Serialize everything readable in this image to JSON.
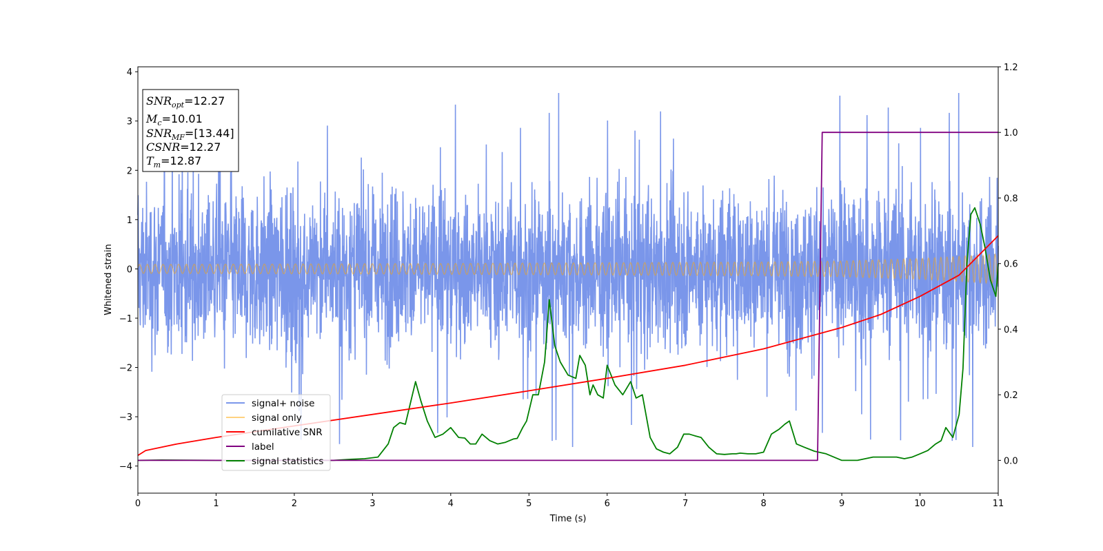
{
  "chart_data": {
    "type": "line",
    "xlabel": "Time (s)",
    "ylabel": "Whitened strain",
    "xlim": [
      0,
      11
    ],
    "ylim_left": [
      -4.55,
      4.1
    ],
    "ylim_right": [
      -0.1,
      1.2
    ],
    "x_ticks": [
      "0",
      "1",
      "2",
      "3",
      "4",
      "5",
      "6",
      "7",
      "8",
      "9",
      "10",
      "11"
    ],
    "y_ticks_left": [
      "−4",
      "−3",
      "−2",
      "−1",
      "0",
      "1",
      "2",
      "3",
      "4"
    ],
    "y_ticks_right": [
      "0.0",
      "0.2",
      "0.4",
      "0.6",
      "0.8",
      "1.0",
      "1.2"
    ],
    "legend_position": "lower-left",
    "grid": false,
    "annotation": {
      "snr_opt": {
        "sym": "SNR",
        "sub": "opt",
        "value": "=12.27"
      },
      "mc": {
        "sym": "M",
        "sub": "c",
        "value": "=10.01"
      },
      "snr_mf": {
        "sym": "SNR",
        "sub": "MF",
        "value": "=[13.44]"
      },
      "csnr": {
        "sym": "CSNR",
        "value": "=12.27"
      },
      "tm": {
        "sym": "T",
        "sub": "m",
        "value": "=12.87"
      }
    },
    "series": [
      {
        "name": "signal+ noise",
        "axis": "left",
        "color": "#4169e1",
        "opacity": 0.7,
        "description_values": {
          "typical_range": [
            -1.6,
            1.6
          ],
          "peaks_max": 3.7,
          "peaks_min": -4.15
        }
      },
      {
        "name": "signal only",
        "axis": "left",
        "color": "#ffa500",
        "opacity": 0.5,
        "envelope": {
          "x": [
            0,
            4,
            8,
            9,
            10,
            11
          ],
          "amplitude": [
            0.09,
            0.11,
            0.14,
            0.16,
            0.21,
            0.3
          ]
        }
      },
      {
        "name": "cumilative SNR",
        "axis": "right",
        "color": "#ff0000",
        "x": [
          0,
          0.1,
          0.5,
          1,
          2,
          3,
          4,
          5,
          6,
          7,
          8,
          9,
          9.5,
          10,
          10.5,
          11
        ],
        "y": [
          0.015,
          0.03,
          0.05,
          0.07,
          0.105,
          0.14,
          0.175,
          0.212,
          0.25,
          0.29,
          0.34,
          0.405,
          0.445,
          0.5,
          0.565,
          0.685
        ]
      },
      {
        "name": "label",
        "axis": "right",
        "color": "#800080",
        "x": [
          0,
          8.69,
          8.75,
          11
        ],
        "y": [
          0,
          0,
          1,
          1
        ]
      },
      {
        "name": "signal statistics",
        "axis": "right",
        "color": "#008000",
        "x": [
          0,
          0.3,
          1,
          2,
          2.5,
          2.7,
          2.9,
          3.07,
          3.2,
          3.27,
          3.35,
          3.42,
          3.55,
          3.62,
          3.7,
          3.8,
          3.9,
          4.0,
          4.1,
          4.18,
          4.25,
          4.32,
          4.4,
          4.5,
          4.6,
          4.7,
          4.8,
          4.85,
          4.92,
          4.97,
          5.05,
          5.12,
          5.2,
          5.26,
          5.33,
          5.4,
          5.5,
          5.6,
          5.65,
          5.72,
          5.78,
          5.82,
          5.88,
          5.95,
          6.0,
          6.1,
          6.2,
          6.3,
          6.37,
          6.45,
          6.55,
          6.63,
          6.72,
          6.8,
          6.9,
          6.98,
          7.05,
          7.12,
          7.2,
          7.3,
          7.4,
          7.5,
          7.6,
          7.65,
          7.7,
          7.8,
          7.9,
          8.0,
          8.1,
          8.2,
          8.27,
          8.33,
          8.42,
          8.52,
          8.65,
          8.8,
          9.0,
          9.2,
          9.4,
          9.6,
          9.7,
          9.8,
          9.9,
          10.0,
          10.1,
          10.2,
          10.27,
          10.33,
          10.42,
          10.5,
          10.55,
          10.6,
          10.65,
          10.7,
          10.77,
          10.83,
          10.9,
          10.97,
          11.0
        ],
        "y": [
          0.0,
          0.001,
          0.0,
          0.0,
          0.0,
          0.003,
          0.005,
          0.01,
          0.05,
          0.1,
          0.115,
          0.11,
          0.24,
          0.18,
          0.12,
          0.07,
          0.08,
          0.1,
          0.07,
          0.068,
          0.05,
          0.05,
          0.08,
          0.06,
          0.05,
          0.055,
          0.065,
          0.067,
          0.1,
          0.12,
          0.2,
          0.2,
          0.3,
          0.49,
          0.35,
          0.3,
          0.26,
          0.25,
          0.32,
          0.29,
          0.2,
          0.23,
          0.2,
          0.19,
          0.29,
          0.23,
          0.2,
          0.24,
          0.19,
          0.2,
          0.07,
          0.035,
          0.025,
          0.02,
          0.04,
          0.08,
          0.08,
          0.075,
          0.07,
          0.04,
          0.02,
          0.018,
          0.02,
          0.02,
          0.022,
          0.02,
          0.02,
          0.025,
          0.08,
          0.095,
          0.11,
          0.12,
          0.05,
          0.04,
          0.028,
          0.02,
          0.0,
          0.0,
          0.01,
          0.01,
          0.01,
          0.005,
          0.01,
          0.02,
          0.03,
          0.05,
          0.06,
          0.1,
          0.07,
          0.14,
          0.28,
          0.6,
          0.75,
          0.77,
          0.72,
          0.65,
          0.55,
          0.5,
          0.6
        ]
      }
    ]
  }
}
